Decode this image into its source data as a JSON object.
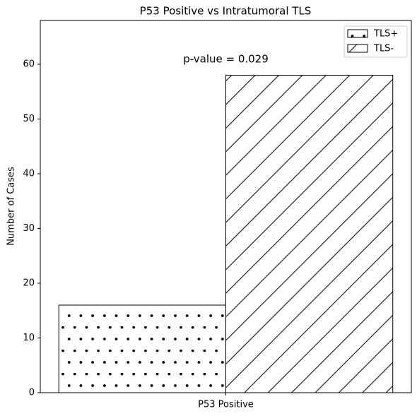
{
  "chart_data": {
    "type": "bar",
    "title": "P53 Positive vs Intratumoral TLS",
    "ylabel": "Number of Cases",
    "categories": [
      "P53 Positive"
    ],
    "series": [
      {
        "name": "TLS+",
        "color": "#ffffff",
        "hatch": ".",
        "values": [
          16
        ]
      },
      {
        "name": "TLS-",
        "color": "#ffffff",
        "hatch": "/",
        "values": [
          58
        ]
      }
    ],
    "annotation": "p-value = 0.029",
    "ylim": [
      0,
      68
    ],
    "yticks": [
      0,
      10,
      20,
      30,
      40,
      50,
      60
    ],
    "legend": "upper right",
    "grid": false
  }
}
